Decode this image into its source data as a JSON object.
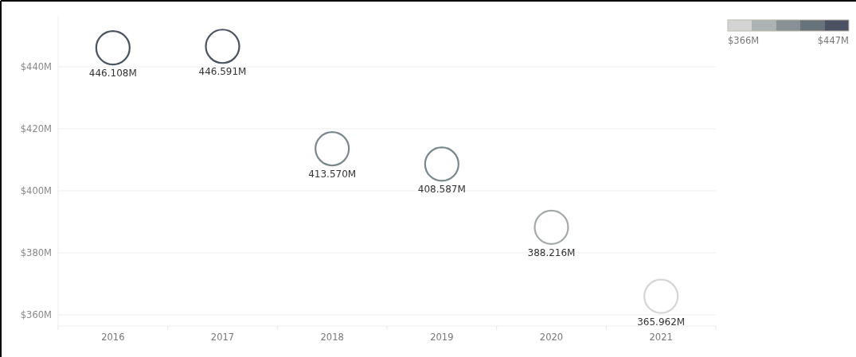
{
  "chart_data": {
    "type": "scatter",
    "categories": [
      "2016",
      "2017",
      "2018",
      "2019",
      "2020",
      "2021"
    ],
    "values": [
      446.108,
      446.591,
      413.57,
      408.587,
      388.216,
      365.962
    ],
    "value_labels": [
      "446.108M",
      "446.591M",
      "413.570M",
      "408.587M",
      "388.216M",
      "365.962M"
    ],
    "colors": [
      "#4a5360",
      "#4a5360",
      "#7a878c",
      "#7a878c",
      "#a3a9a9",
      "#d5d5d5"
    ],
    "marker": "circle",
    "ylim": [
      356.4,
      456.4
    ],
    "yticks": [
      {
        "value": 360,
        "label": "$360M"
      },
      {
        "value": 380,
        "label": "$380M"
      },
      {
        "value": 400,
        "label": "$400M"
      },
      {
        "value": 420,
        "label": "$420M"
      },
      {
        "value": 440,
        "label": "$440M"
      }
    ],
    "grid": "y",
    "clim": [
      366,
      447
    ],
    "cticks": [
      {
        "value": 366,
        "label": "$366M"
      },
      {
        "value": 447,
        "label": "$447M"
      }
    ]
  }
}
